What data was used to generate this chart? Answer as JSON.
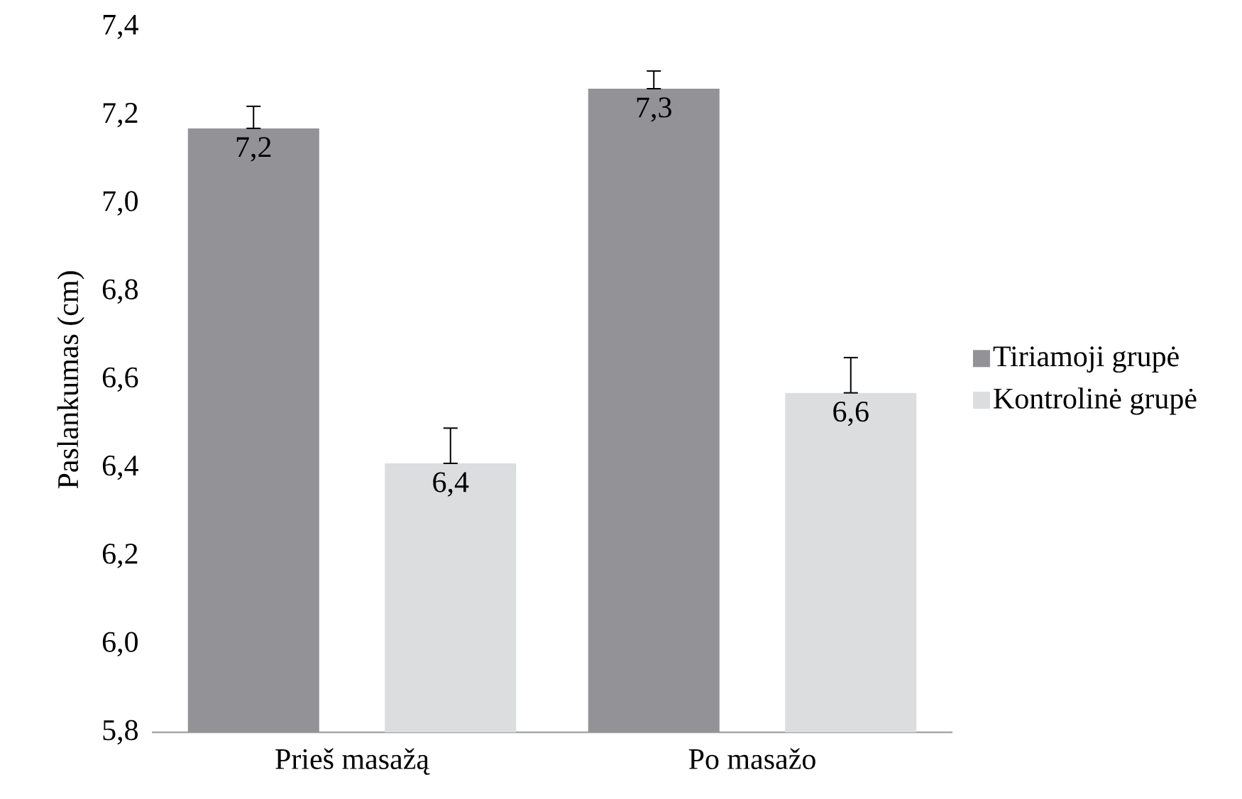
{
  "chart_data": {
    "type": "bar",
    "ylabel": "Paslankumas (cm)",
    "categories": [
      "Prieš masažą",
      "Po masažo"
    ],
    "series": [
      {
        "name": "Tiriamoji grupė",
        "color": "#939397",
        "values": [
          7.17,
          7.26
        ],
        "errors": [
          [
            7.17,
            7.22
          ],
          [
            7.26,
            7.3
          ]
        ],
        "value_labels": [
          "7,2",
          "7,3"
        ]
      },
      {
        "name": "Kontrolinė grupė",
        "color": "#dcdddf",
        "values": [
          6.41,
          6.57
        ],
        "errors": [
          [
            6.41,
            6.49
          ],
          [
            6.57,
            6.65
          ]
        ],
        "value_labels": [
          "6,4",
          "6,6"
        ]
      }
    ],
    "ylim": [
      5.8,
      7.4
    ],
    "yticks": [
      {
        "value": 5.8,
        "label": "5,8"
      },
      {
        "value": 6.0,
        "label": "6,0"
      },
      {
        "value": 6.2,
        "label": "6,2"
      },
      {
        "value": 6.4,
        "label": "6,4"
      },
      {
        "value": 6.6,
        "label": "6,6"
      },
      {
        "value": 6.8,
        "label": "6,8"
      },
      {
        "value": 7.0,
        "label": "7,0"
      },
      {
        "value": 7.2,
        "label": "7,2"
      },
      {
        "value": 7.4,
        "label": "7,4"
      }
    ],
    "legend": "right",
    "grid": false
  }
}
